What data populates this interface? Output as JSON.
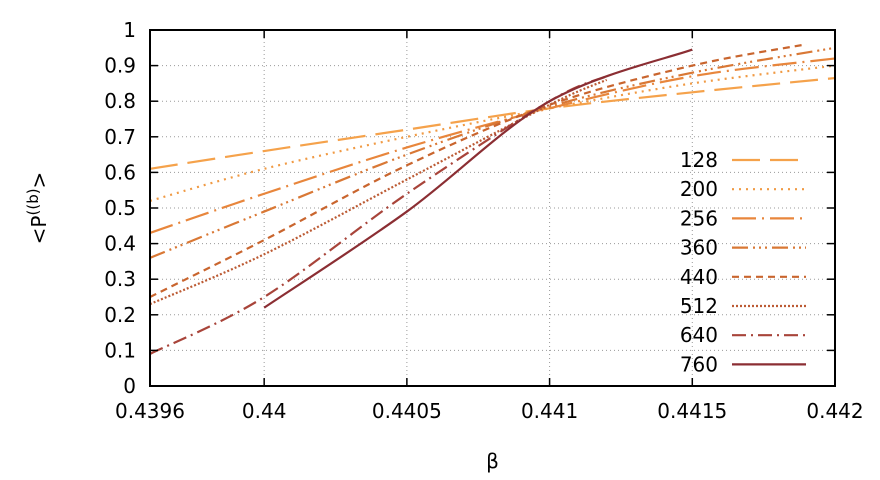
{
  "chart_data": {
    "type": "line",
    "title": "",
    "xlabel": "β",
    "ylabel_prefix": "<P",
    "ylabel_sup": "((b)",
    "ylabel_suffix": ">",
    "xlim": [
      0.4396,
      0.442
    ],
    "ylim": [
      0,
      1
    ],
    "x_ticks": [
      0.4396,
      0.44,
      0.4405,
      0.441,
      0.4415,
      0.442
    ],
    "x_tick_labels": [
      "0.4396",
      "0.44",
      "0.4405",
      "0.441",
      "0.4415",
      "0.442"
    ],
    "y_ticks": [
      0,
      0.1,
      0.2,
      0.3,
      0.4,
      0.5,
      0.6,
      0.7,
      0.8,
      0.9,
      1
    ],
    "y_tick_labels": [
      "0",
      "0.1",
      "0.2",
      "0.3",
      "0.4",
      "0.5",
      "0.6",
      "0.7",
      "0.8",
      "0.9",
      "1"
    ],
    "grid": true,
    "legend_position": "right",
    "series": [
      {
        "name": "128",
        "color": "#f5a24b",
        "dash": "28,10",
        "x": [
          0.4396,
          0.44,
          0.4405,
          0.441,
          0.4415,
          0.442
        ],
        "y": [
          0.61,
          0.66,
          0.72,
          0.78,
          0.825,
          0.865
        ]
      },
      {
        "name": "200",
        "color": "#f09a44",
        "dash": "2,5",
        "x": [
          0.4396,
          0.44,
          0.4405,
          0.441,
          0.4415,
          0.442
        ],
        "y": [
          0.52,
          0.61,
          0.7,
          0.78,
          0.85,
          0.9
        ]
      },
      {
        "name": "256",
        "color": "#e8863c",
        "dash": "24,6,2,6",
        "x": [
          0.4396,
          0.44,
          0.4405,
          0.441,
          0.4415,
          0.442
        ],
        "y": [
          0.43,
          0.54,
          0.67,
          0.78,
          0.87,
          0.92
        ]
      },
      {
        "name": "360",
        "color": "#d97835",
        "dash": "16,5,2,4,2,4,2,5",
        "x": [
          0.4396,
          0.44,
          0.4405,
          0.441,
          0.4415,
          0.442
        ],
        "y": [
          0.36,
          0.49,
          0.65,
          0.785,
          0.88,
          0.95
        ]
      },
      {
        "name": "440",
        "color": "#c9652e",
        "dash": "7,5",
        "x": [
          0.4396,
          0.44,
          0.4405,
          0.441,
          0.4415,
          0.4419
        ],
        "y": [
          0.25,
          0.41,
          0.62,
          0.79,
          0.9,
          0.96
        ]
      },
      {
        "name": "512",
        "color": "#bc5b34",
        "dash": "2,2",
        "x": [
          0.4396,
          0.44,
          0.4405,
          0.441,
          0.4412
        ],
        "y": [
          0.23,
          0.37,
          0.58,
          0.79,
          0.86
        ]
      },
      {
        "name": "640",
        "color": "#a8443a",
        "dash": "14,5,2,5",
        "x": [
          0.4396,
          0.44,
          0.4405,
          0.441,
          0.4412
        ],
        "y": [
          0.09,
          0.25,
          0.54,
          0.8,
          0.87
        ]
      },
      {
        "name": "760",
        "color": "#8b2e33",
        "dash": "",
        "x": [
          0.44,
          0.4405,
          0.441,
          0.4415
        ],
        "y": [
          0.22,
          0.49,
          0.8,
          0.945
        ]
      }
    ]
  }
}
